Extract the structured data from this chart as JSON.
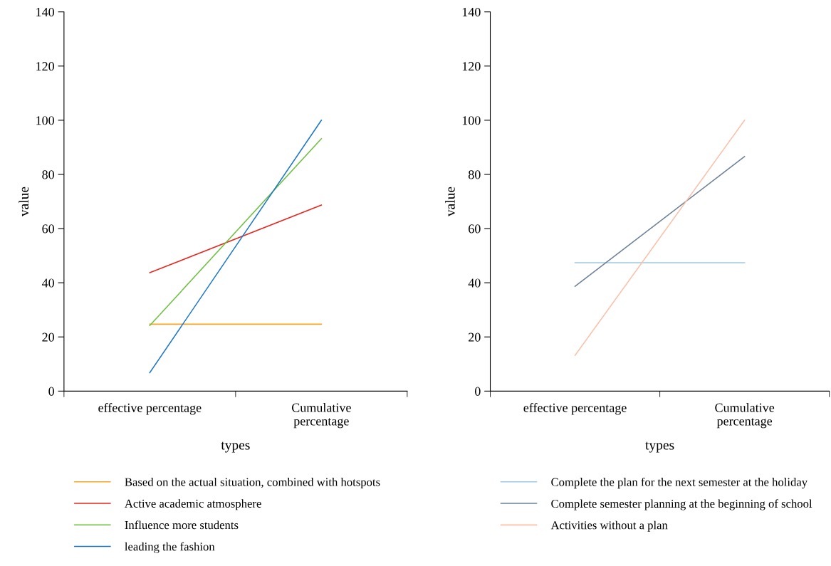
{
  "chart_data": [
    {
      "type": "line",
      "categories": [
        "effective percentage",
        "Cumulative\npercentage"
      ],
      "xlabel": "types",
      "ylabel": "value",
      "ylim": [
        0,
        140
      ],
      "yticks": [
        0,
        20,
        40,
        60,
        80,
        100,
        120,
        140
      ],
      "grid": false,
      "legend": "bottom",
      "marker": "none",
      "series": [
        {
          "name": "Based on the actual situation, combined with hotspots",
          "color": "#f5a623",
          "values": [
            24.7,
            24.7
          ]
        },
        {
          "name": "Active academic atmosphere",
          "color": "#e8251f",
          "values": [
            43.7,
            68.7
          ]
        },
        {
          "name": "Influence more students",
          "color": "#6cbf3e",
          "values": [
            24.2,
            93.2
          ]
        },
        {
          "name": "leading the fashion",
          "color": "#1a75c8",
          "values": [
            6.8,
            100
          ]
        }
      ]
    },
    {
      "type": "line",
      "categories": [
        "effective percentage",
        "Cumulative\npercentage"
      ],
      "xlabel": "types",
      "ylabel": "value",
      "ylim": [
        0,
        140
      ],
      "yticks": [
        0,
        20,
        40,
        60,
        80,
        100,
        120,
        140
      ],
      "grid": false,
      "legend": "bottom",
      "marker": "none",
      "series": [
        {
          "name": "Complete the plan for the next semester at the holiday",
          "color": "#9ecae1",
          "values": [
            47.4,
            47.4
          ]
        },
        {
          "name": "Complete semester planning at the beginning of school",
          "color": "#6d8299",
          "values": [
            38.7,
            86.6
          ]
        },
        {
          "name": "Activities without a plan",
          "color": "#f9c0a8",
          "values": [
            13.2,
            100
          ]
        }
      ]
    }
  ]
}
